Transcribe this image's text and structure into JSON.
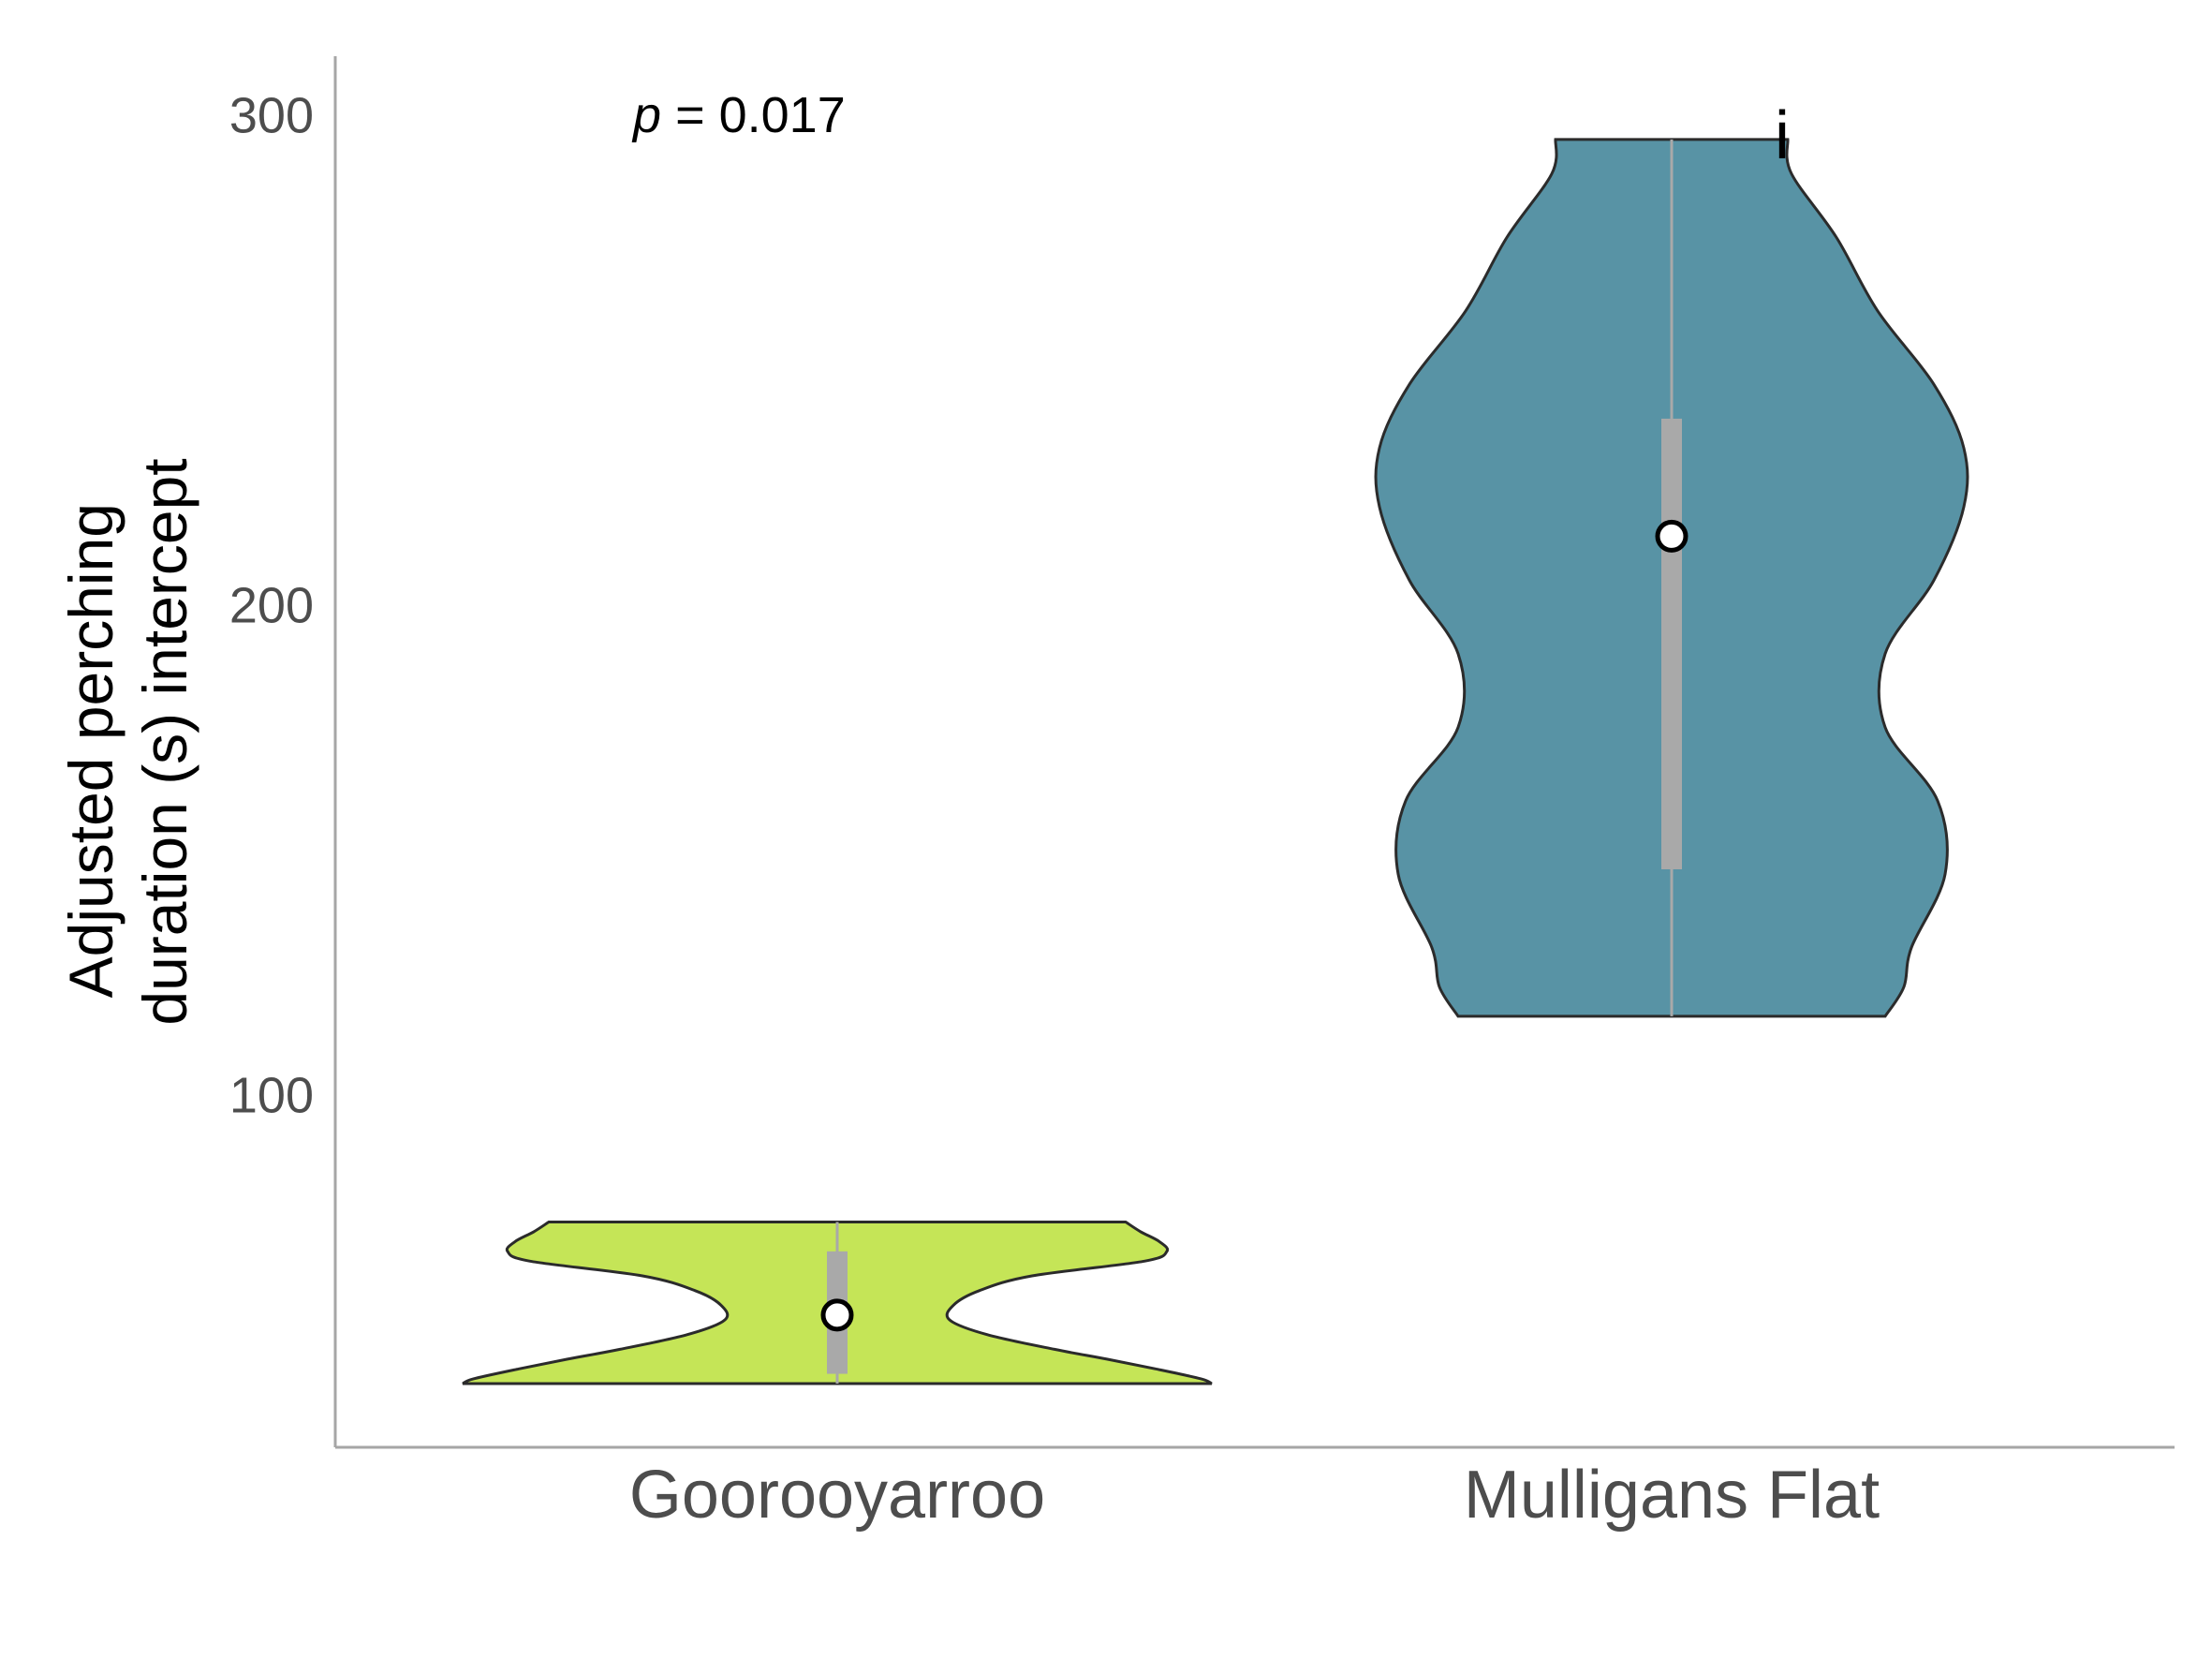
{
  "chart_data": {
    "type": "violin",
    "title": "",
    "xlabel": "",
    "ylabel_lines": [
      "Adjusted perching",
      "duration (s) intercept"
    ],
    "ylim": [
      28,
      312
    ],
    "yticks": [
      100,
      200,
      300
    ],
    "grid": false,
    "annotation": {
      "italic": "p",
      "rest": " = 0.017"
    },
    "series": [
      {
        "category": "Goorooyarroo",
        "color": "#c5e557",
        "min": 41,
        "max": 74,
        "q1": 43,
        "q3": 68,
        "mean": 55,
        "letter": "",
        "density": [
          [
            41,
            1.0
          ],
          [
            42,
            0.97
          ],
          [
            44,
            0.85
          ],
          [
            46,
            0.72
          ],
          [
            48,
            0.58
          ],
          [
            51,
            0.4
          ],
          [
            54,
            0.3
          ],
          [
            57,
            0.31
          ],
          [
            60,
            0.38
          ],
          [
            63,
            0.52
          ],
          [
            66,
            0.82
          ],
          [
            68,
            0.88
          ],
          [
            70,
            0.86
          ],
          [
            72,
            0.81
          ],
          [
            74,
            0.77
          ]
        ]
      },
      {
        "category": "Mulligans Flat",
        "color": "#5893a5",
        "min": 116,
        "max": 295,
        "q1": 146,
        "q3": 238,
        "mean": 214,
        "letter": "i",
        "density": [
          [
            116,
            0.57
          ],
          [
            122,
            0.62
          ],
          [
            130,
            0.64
          ],
          [
            145,
            0.73
          ],
          [
            160,
            0.71
          ],
          [
            175,
            0.57
          ],
          [
            190,
            0.57
          ],
          [
            205,
            0.7
          ],
          [
            220,
            0.78
          ],
          [
            232,
            0.78
          ],
          [
            245,
            0.7
          ],
          [
            260,
            0.55
          ],
          [
            275,
            0.44
          ],
          [
            288,
            0.32
          ],
          [
            295,
            0.31
          ]
        ]
      }
    ]
  }
}
